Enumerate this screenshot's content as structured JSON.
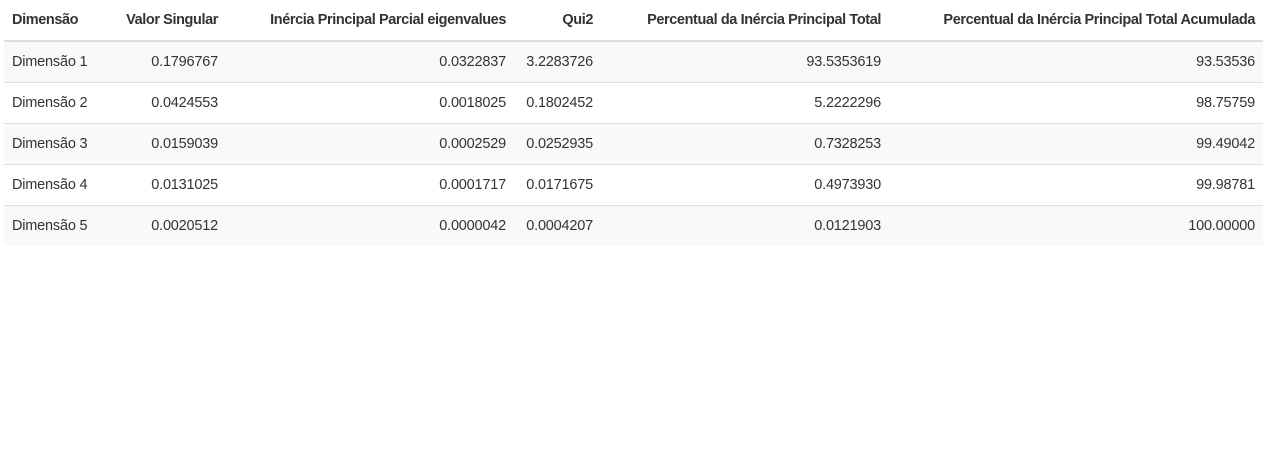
{
  "table": {
    "headers": [
      "Dimensão",
      "Valor Singular",
      "Inércia Principal Parcial eigenvalues",
      "Qui2",
      "Percentual da Inércia Principal Total",
      "Percentual da Inércia Principal Total Acumulada"
    ],
    "rows": [
      [
        "Dimensão 1",
        "0.1796767",
        "0.0322837",
        "3.2283726",
        "93.5353619",
        "93.53536"
      ],
      [
        "Dimensão 2",
        "0.0424553",
        "0.0018025",
        "0.1802452",
        "5.2222296",
        "98.75759"
      ],
      [
        "Dimensão 3",
        "0.0159039",
        "0.0002529",
        "0.0252935",
        "0.7328253",
        "99.49042"
      ],
      [
        "Dimensão 4",
        "0.0131025",
        "0.0001717",
        "0.0171675",
        "0.4973930",
        "99.98781"
      ],
      [
        "Dimensão 5",
        "0.0020512",
        "0.0000042",
        "0.0004207",
        "0.0121903",
        "100.00000"
      ]
    ]
  }
}
